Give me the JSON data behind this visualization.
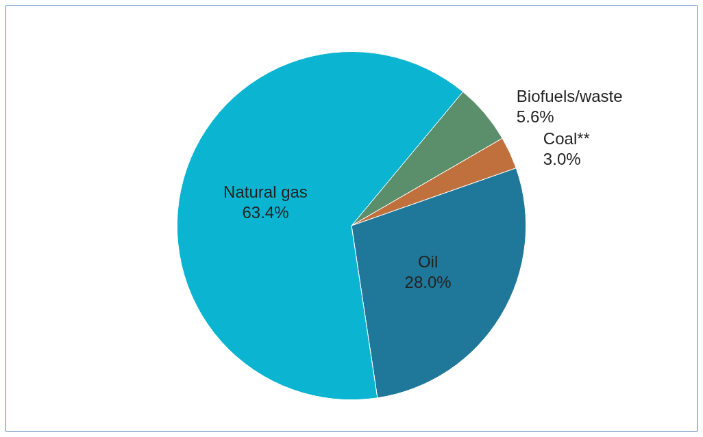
{
  "chart_data": {
    "type": "pie",
    "categories": [
      "Biofuels/waste",
      "Coal**",
      "Oil",
      "Natural gas"
    ],
    "values": [
      5.6,
      3.0,
      28.0,
      63.4
    ],
    "colors": [
      "#5b8f6c",
      "#c0703c",
      "#1f7799",
      "#0bb5d1"
    ],
    "value_labels": [
      "5.6%",
      "3.0%",
      "28.0%",
      "63.4%"
    ],
    "legend": false
  }
}
